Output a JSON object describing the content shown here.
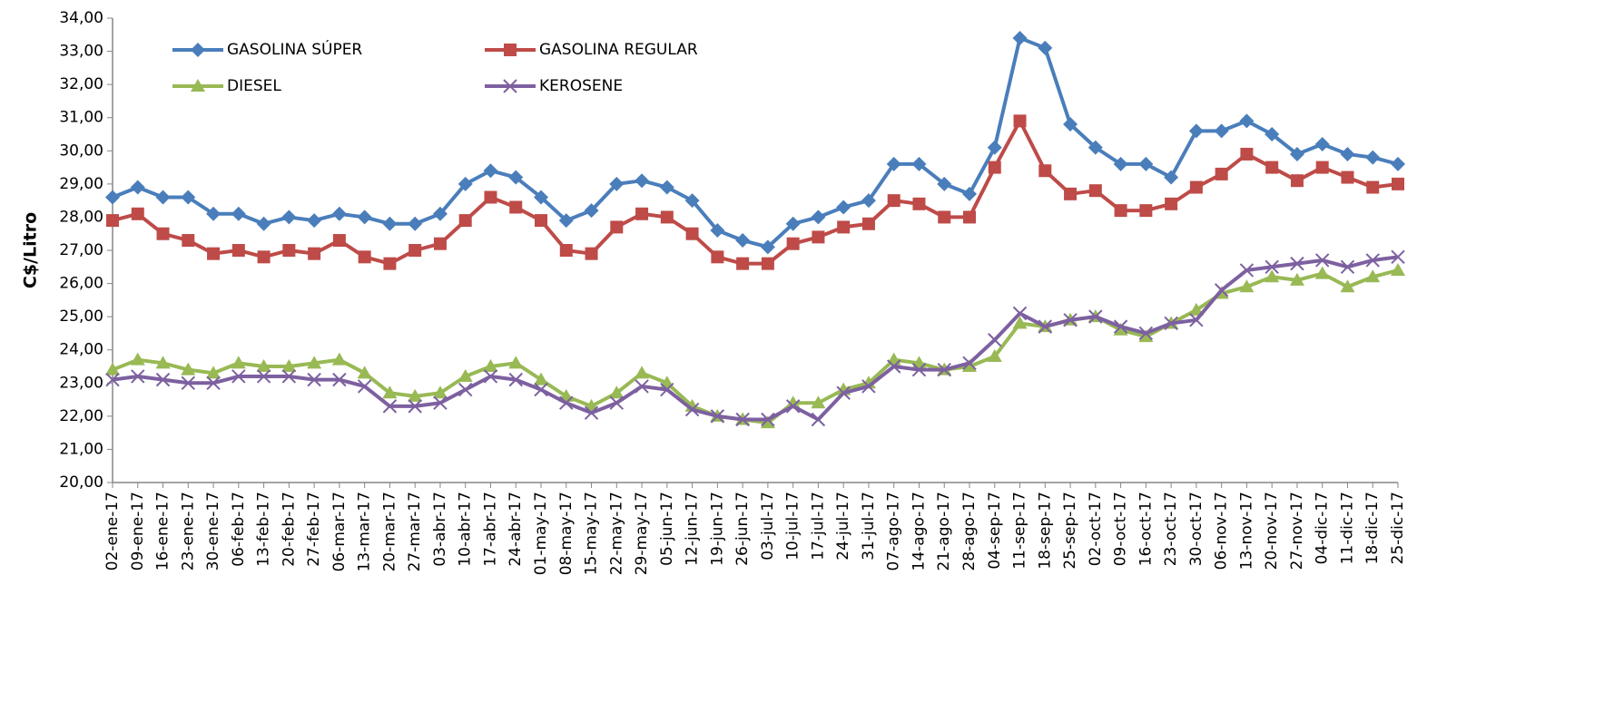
{
  "chart_data": {
    "type": "line",
    "y_label": "C$/Litro",
    "categories": [
      "02-ene-17",
      "09-ene-17",
      "16-ene-17",
      "23-ene-17",
      "30-ene-17",
      "06-feb-17",
      "13-feb-17",
      "20-feb-17",
      "27-feb-17",
      "06-mar-17",
      "13-mar-17",
      "20-mar-17",
      "27-mar-17",
      "03-abr-17",
      "10-abr-17",
      "17-abr-17",
      "24-abr-17",
      "01-may-17",
      "08-may-17",
      "15-may-17",
      "22-may-17",
      "29-may-17",
      "05-jun-17",
      "12-jun-17",
      "19-jun-17",
      "26-jun-17",
      "03-jul-17",
      "10-jul-17",
      "17-jul-17",
      "24-jul-17",
      "31-jul-17",
      "07-ago-17",
      "14-ago-17",
      "21-ago-17",
      "28-ago-17",
      "04-sep-17",
      "11-sep-17",
      "18-sep-17",
      "25-sep-17",
      "02-oct-17",
      "09-oct-17",
      "16-oct-17",
      "23-oct-17",
      "30-oct-17",
      "06-nov-17",
      "13-nov-17",
      "20-nov-17",
      "27-nov-17",
      "04-dic-17",
      "11-dic-17",
      "18-dic-17",
      "25-dic-17"
    ],
    "series": [
      {
        "name": "GASOLINA SÚPER",
        "color": "#4a7ebb",
        "marker": "diamond",
        "values": [
          28.6,
          28.9,
          28.6,
          28.6,
          28.1,
          28.1,
          27.8,
          28.0,
          27.9,
          28.1,
          28.0,
          27.8,
          27.8,
          28.1,
          29.0,
          29.4,
          29.2,
          28.6,
          27.9,
          28.2,
          29.0,
          29.1,
          28.9,
          28.5,
          27.6,
          27.3,
          27.1,
          27.8,
          28.0,
          28.3,
          28.5,
          29.6,
          29.6,
          29.0,
          28.7,
          30.1,
          33.4,
          33.1,
          30.8,
          30.1,
          29.6,
          29.6,
          29.2,
          30.6,
          30.6,
          30.9,
          30.5,
          29.9,
          30.2,
          29.9,
          29.8,
          29.6
        ]
      },
      {
        "name": "GASOLINA REGULAR",
        "color": "#be4b48",
        "marker": "square",
        "values": [
          27.9,
          28.1,
          27.5,
          27.3,
          26.9,
          27.0,
          26.8,
          27.0,
          26.9,
          27.3,
          26.8,
          26.6,
          27.0,
          27.2,
          27.9,
          28.6,
          28.3,
          27.9,
          27.0,
          26.9,
          27.7,
          28.1,
          28.0,
          27.5,
          26.8,
          26.6,
          26.6,
          27.2,
          27.4,
          27.7,
          27.8,
          28.5,
          28.4,
          28.0,
          28.0,
          29.5,
          30.9,
          29.4,
          28.7,
          28.8,
          28.2,
          28.2,
          28.4,
          28.9,
          29.3,
          29.9,
          29.5,
          29.1,
          29.5,
          29.2,
          28.9,
          29.0
        ]
      },
      {
        "name": "DIESEL",
        "color": "#98b954",
        "marker": "triangle",
        "values": [
          23.4,
          23.7,
          23.6,
          23.4,
          23.3,
          23.6,
          23.5,
          23.5,
          23.6,
          23.7,
          23.3,
          22.7,
          22.6,
          22.7,
          23.2,
          23.5,
          23.6,
          23.1,
          22.6,
          22.3,
          22.7,
          23.3,
          23.0,
          22.3,
          22.0,
          21.9,
          21.8,
          22.4,
          22.4,
          22.8,
          23.0,
          23.7,
          23.6,
          23.4,
          23.5,
          23.8,
          24.8,
          24.7,
          24.9,
          25.0,
          24.6,
          24.4,
          24.8,
          25.2,
          25.7,
          25.9,
          26.2,
          26.1,
          26.3,
          25.9,
          26.2,
          26.4
        ]
      },
      {
        "name": "KEROSENE",
        "color": "#7d60a0",
        "marker": "x",
        "values": [
          23.1,
          23.2,
          23.1,
          23.0,
          23.0,
          23.2,
          23.2,
          23.2,
          23.1,
          23.1,
          22.9,
          22.3,
          22.3,
          22.4,
          22.8,
          23.2,
          23.1,
          22.8,
          22.4,
          22.1,
          22.4,
          22.9,
          22.8,
          22.2,
          22.0,
          21.9,
          21.9,
          22.3,
          21.9,
          22.7,
          22.9,
          23.5,
          23.4,
          23.4,
          23.6,
          24.3,
          25.1,
          24.7,
          24.9,
          25.0,
          24.7,
          24.5,
          24.8,
          24.9,
          25.8,
          26.4,
          26.5,
          26.6,
          26.7,
          26.5,
          26.7,
          26.8
        ]
      }
    ],
    "ylim": [
      20,
      34
    ],
    "yticks": [
      {
        "value": 20,
        "label": "20,00"
      },
      {
        "value": 21,
        "label": "21,00"
      },
      {
        "value": 22,
        "label": "22,00"
      },
      {
        "value": 23,
        "label": "23,00"
      },
      {
        "value": 24,
        "label": "24,00"
      },
      {
        "value": 25,
        "label": "25,00"
      },
      {
        "value": 26,
        "label": "26,00"
      },
      {
        "value": 27,
        "label": "27,00"
      },
      {
        "value": 28,
        "label": "28,00"
      },
      {
        "value": 29,
        "label": "29,00"
      },
      {
        "value": 30,
        "label": "30,00"
      },
      {
        "value": 31,
        "label": "31,00"
      },
      {
        "value": 32,
        "label": "32,00"
      },
      {
        "value": 33,
        "label": "33,00"
      },
      {
        "value": 34,
        "label": "34,00"
      }
    ],
    "legend": "top-left"
  }
}
